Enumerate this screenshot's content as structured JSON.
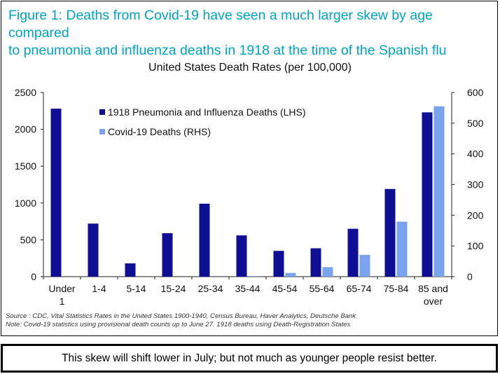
{
  "figure": {
    "title": "Figure 1: Deaths from Covid-19 have seen a much larger skew by age compared\nto pneumonia and influenza deaths in 1918 at the time of the Spanish flu",
    "source": "Source : CDC, Vital Statistics Rates in the United States 1900-1940, Census Bureau, Haver Analytics, Deutsche Bank",
    "note": "Note: Covid-19 statistics using provisional death counts up to June 27. 1918 deaths using Death-Registration States",
    "caption": "This skew will shift lower in July; but not much as younger people resist better."
  },
  "chart_data": {
    "type": "bar",
    "title": "United States Death Rates (per 100,000)",
    "categories": [
      "Under 1",
      "1-4",
      "5-14",
      "15-24",
      "25-34",
      "35-44",
      "45-54",
      "55-64",
      "65-74",
      "75-84",
      "85 and over"
    ],
    "category_lines": [
      [
        "Under",
        "1"
      ],
      [
        "1-4"
      ],
      [
        "5-14"
      ],
      [
        "15-24"
      ],
      [
        "25-34"
      ],
      [
        "35-44"
      ],
      [
        "45-54"
      ],
      [
        "55-64"
      ],
      [
        "65-74"
      ],
      [
        "75-84"
      ],
      [
        "85 and",
        "over"
      ]
    ],
    "series": [
      {
        "name": "1918 Pneumonia and Influenza Deaths (LHS)",
        "axis": "left",
        "color": "#0f0f96",
        "values": [
          2280,
          720,
          180,
          590,
          990,
          560,
          350,
          385,
          650,
          1190,
          2230
        ]
      },
      {
        "name": "Covid-19 Deaths (RHS)",
        "axis": "right",
        "color": "#7aa3ee",
        "values": [
          0,
          0,
          0,
          0,
          0,
          2,
          12,
          31,
          71,
          179,
          555
        ]
      }
    ],
    "ylim_left": [
      0,
      2500
    ],
    "ylim_right": [
      0,
      600
    ],
    "yticks_left": [
      0,
      500,
      1000,
      1500,
      2000,
      2500
    ],
    "yticks_right": [
      0,
      100,
      200,
      300,
      400,
      500,
      600
    ],
    "legend_position": "top-left",
    "grid": false
  }
}
